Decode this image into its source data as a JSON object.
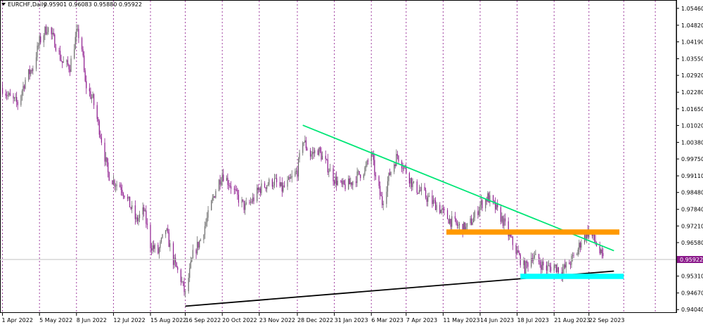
{
  "header": {
    "symbol": "EURCHF,Daily",
    "ohlc": "0.95901 0.96083 0.95880 0.95922"
  },
  "price_badge": "0.95922",
  "chart_data": {
    "type": "candlestick",
    "symbol": "EURCHF",
    "timeframe": "Daily",
    "last_bar": {
      "open": 0.95901,
      "high": 0.96083,
      "low": 0.9588,
      "close": 0.95922
    },
    "ylim": [
      0.9394,
      1.0575
    ],
    "y_ticks": [
      "1.05460",
      "1.04820",
      "1.04190",
      "1.03550",
      "1.02920",
      "1.02280",
      "1.01650",
      "1.01020",
      "1.00380",
      "0.99750",
      "0.99110",
      "0.98480",
      "0.97840",
      "0.97210",
      "0.96580",
      "0.95922",
      "0.95310",
      "0.94670",
      "0.94040"
    ],
    "x_ticks": [
      "1 Apr 2022",
      "5 May 2022",
      "8 Jun 2022",
      "12 Jul 2022",
      "15 Aug 2022",
      "16 Sep 2022",
      "20 Oct 2022",
      "23 Nov 2022",
      "28 Dec 2022",
      "31 Jan 2023",
      "6 Mar 2023",
      "7 Apr 2023",
      "11 May 2023",
      "14 Jun 2023",
      "18 Jul 2023",
      "21 Aug 2023",
      "22 Sep 2023"
    ],
    "price_path": [
      [
        "2022-04-01",
        1.0245
      ],
      [
        "2022-04-08",
        1.0205
      ],
      [
        "2022-04-15",
        1.0185
      ],
      [
        "2022-04-22",
        1.0275
      ],
      [
        "2022-04-29",
        1.0325
      ],
      [
        "2022-05-05",
        1.042
      ],
      [
        "2022-05-12",
        1.0475
      ],
      [
        "2022-05-19",
        1.042
      ],
      [
        "2022-05-26",
        1.034
      ],
      [
        "2022-06-02",
        1.0325
      ],
      [
        "2022-06-08",
        1.045
      ],
      [
        "2022-06-12",
        1.044
      ],
      [
        "2022-06-16",
        1.026
      ],
      [
        "2022-06-23",
        1.02
      ],
      [
        "2022-06-30",
        1.007
      ],
      [
        "2022-07-07",
        0.992
      ],
      [
        "2022-07-12",
        0.989
      ],
      [
        "2022-07-19",
        0.987
      ],
      [
        "2022-07-26",
        0.981
      ],
      [
        "2022-08-02",
        0.974
      ],
      [
        "2022-08-09",
        0.978
      ],
      [
        "2022-08-15",
        0.965
      ],
      [
        "2022-08-22",
        0.962
      ],
      [
        "2022-08-29",
        0.971
      ],
      [
        "2022-09-05",
        0.959
      ],
      [
        "2022-09-12",
        0.952
      ],
      [
        "2022-09-16",
        0.946
      ],
      [
        "2022-09-23",
        0.961
      ],
      [
        "2022-09-30",
        0.967
      ],
      [
        "2022-10-07",
        0.976
      ],
      [
        "2022-10-14",
        0.986
      ],
      [
        "2022-10-20",
        0.992
      ],
      [
        "2022-10-27",
        0.988
      ],
      [
        "2022-11-03",
        0.983
      ],
      [
        "2022-11-10",
        0.979
      ],
      [
        "2022-11-17",
        0.982
      ],
      [
        "2022-11-23",
        0.986
      ],
      [
        "2022-11-30",
        0.988
      ],
      [
        "2022-12-07",
        0.989
      ],
      [
        "2022-12-14",
        0.986
      ],
      [
        "2022-12-21",
        0.989
      ],
      [
        "2022-12-28",
        0.993
      ],
      [
        "2023-01-02",
        1.005
      ],
      [
        "2023-01-09",
        0.999
      ],
      [
        "2023-01-16",
        1.001
      ],
      [
        "2023-01-23",
        0.996
      ],
      [
        "2023-01-31",
        0.99
      ],
      [
        "2023-02-07",
        0.987
      ],
      [
        "2023-02-14",
        0.988
      ],
      [
        "2023-02-21",
        0.991
      ],
      [
        "2023-03-01",
        0.994
      ],
      [
        "2023-03-06",
        1.0
      ],
      [
        "2023-03-10",
        0.99
      ],
      [
        "2023-03-16",
        0.981
      ],
      [
        "2023-03-23",
        0.992
      ],
      [
        "2023-03-30",
        0.999
      ],
      [
        "2023-04-07",
        0.993
      ],
      [
        "2023-04-14",
        0.987
      ],
      [
        "2023-04-21",
        0.985
      ],
      [
        "2023-04-28",
        0.982
      ],
      [
        "2023-05-05",
        0.98
      ],
      [
        "2023-05-11",
        0.977
      ],
      [
        "2023-05-18",
        0.974
      ],
      [
        "2023-05-25",
        0.972
      ],
      [
        "2023-06-01",
        0.971
      ],
      [
        "2023-06-08",
        0.975
      ],
      [
        "2023-06-14",
        0.98
      ],
      [
        "2023-06-21",
        0.983
      ],
      [
        "2023-06-28",
        0.979
      ],
      [
        "2023-07-05",
        0.974
      ],
      [
        "2023-07-11",
        0.968
      ],
      [
        "2023-07-18",
        0.962
      ],
      [
        "2023-07-25",
        0.956
      ],
      [
        "2023-08-01",
        0.961
      ],
      [
        "2023-08-08",
        0.958
      ],
      [
        "2023-08-14",
        0.956
      ],
      [
        "2023-08-21",
        0.957
      ],
      [
        "2023-08-28",
        0.955
      ],
      [
        "2023-09-04",
        0.958
      ],
      [
        "2023-09-11",
        0.962
      ],
      [
        "2023-09-16",
        0.968
      ],
      [
        "2023-09-22",
        0.97
      ],
      [
        "2023-09-28",
        0.966
      ],
      [
        "2023-10-03",
        0.961
      ],
      [
        "2023-10-05",
        0.9592
      ]
    ],
    "annotations": [
      {
        "kind": "trendline",
        "color": "#00e676",
        "from": [
          "2023-01-02",
          1.0103
        ],
        "to": [
          "2023-10-15",
          0.9627
        ]
      },
      {
        "kind": "trendline",
        "color": "#000000",
        "from": [
          "2022-09-16",
          0.9417
        ],
        "to": [
          "2023-10-15",
          0.955
        ]
      },
      {
        "kind": "zone",
        "color": "#ff9900",
        "x_from": "2023-05-14",
        "x_to": "2023-10-20",
        "y_low": 0.9688,
        "y_high": 0.9708
      },
      {
        "kind": "zone",
        "color": "#00ffff",
        "x_from": "2023-07-21",
        "x_to": "2023-10-24",
        "y_low": 0.952,
        "y_high": 0.954
      }
    ],
    "grid": false
  }
}
